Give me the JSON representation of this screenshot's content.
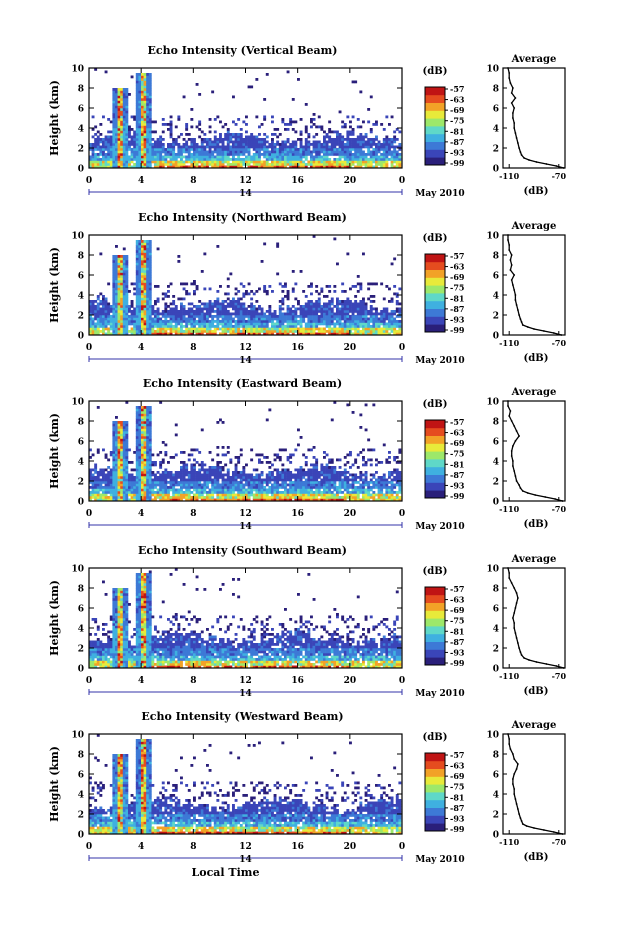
{
  "figure": {
    "xlabel": "Local Time",
    "date_label": "May 2010",
    "colorscale": [
      "#2a1f7a",
      "#3a45b8",
      "#3d79d6",
      "#3fb0e0",
      "#5fd8c8",
      "#9de86a",
      "#e8ea3a",
      "#f2a227",
      "#e54c1f",
      "#c01414"
    ]
  },
  "chart_data": [
    {
      "type": "heatmap",
      "title": "Echo Intensity (Vertical Beam)",
      "ylabel": "Height (km)",
      "ylim": [
        0,
        10
      ],
      "yticks": [
        "0",
        "2",
        "4",
        "6",
        "8",
        "10"
      ],
      "xticks": [
        "0",
        "4",
        "8",
        "12",
        "16",
        "20",
        "0"
      ],
      "day_label": "14",
      "colorbar": {
        "unit": "(dB)",
        "ticks": [
          "-57",
          "-63",
          "-69",
          "-75",
          "-81",
          "-87",
          "-93",
          "-99"
        ]
      },
      "profile": {
        "title": "Average",
        "xlabel": "(dB)",
        "xticks": [
          "-110",
          "-70"
        ],
        "xlim": [
          -115,
          -65
        ],
        "heights": [
          0,
          0.2,
          0.4,
          0.6,
          0.8,
          1.0,
          1.3,
          1.6,
          2.0,
          2.5,
          3.0,
          3.5,
          4.0,
          4.5,
          5.0,
          5.5,
          6.0,
          6.5,
          7.0,
          7.5,
          8.0,
          8.5,
          9.0,
          9.5,
          10.0
        ],
        "values": [
          -66,
          -72,
          -80,
          -88,
          -94,
          -98,
          -100,
          -101,
          -102,
          -103,
          -104,
          -105,
          -106,
          -106,
          -107,
          -107,
          -106,
          -108,
          -105,
          -108,
          -107,
          -109,
          -110,
          -110,
          -111
        ]
      }
    },
    {
      "type": "heatmap",
      "title": "Echo Intensity (Northward Beam)",
      "ylabel": "Height (km)",
      "ylim": [
        0,
        10
      ],
      "yticks": [
        "0",
        "2",
        "4",
        "6",
        "8",
        "10"
      ],
      "xticks": [
        "0",
        "4",
        "8",
        "12",
        "16",
        "20",
        "0"
      ],
      "day_label": "14",
      "colorbar": {
        "unit": "(dB)",
        "ticks": [
          "-57",
          "-63",
          "-69",
          "-75",
          "-81",
          "-87",
          "-93",
          "-99"
        ]
      },
      "profile": {
        "title": "Average",
        "xlabel": "(dB)",
        "xticks": [
          "-110",
          "-70"
        ],
        "xlim": [
          -115,
          -65
        ],
        "heights": [
          0,
          0.2,
          0.4,
          0.6,
          0.8,
          1.0,
          1.3,
          1.6,
          2.0,
          2.5,
          3.0,
          3.5,
          4.0,
          4.5,
          5.0,
          5.5,
          6.0,
          6.5,
          7.0,
          7.5,
          8.0,
          8.5,
          9.0,
          9.5,
          10.0
        ],
        "values": [
          -68,
          -74,
          -82,
          -90,
          -95,
          -99,
          -100,
          -101,
          -102,
          -103,
          -104,
          -105,
          -105,
          -106,
          -107,
          -108,
          -106,
          -109,
          -108,
          -109,
          -108,
          -110,
          -110,
          -111,
          -111
        ]
      }
    },
    {
      "type": "heatmap",
      "title": "Echo Intensity (Eastward Beam)",
      "ylabel": "Height (km)",
      "ylim": [
        0,
        10
      ],
      "yticks": [
        "0",
        "2",
        "4",
        "6",
        "8",
        "10"
      ],
      "xticks": [
        "0",
        "4",
        "8",
        "12",
        "16",
        "20",
        "0"
      ],
      "day_label": "14",
      "colorbar": {
        "unit": "(dB)",
        "ticks": [
          "-57",
          "-63",
          "-69",
          "-75",
          "-81",
          "-87",
          "-93",
          "-99"
        ]
      },
      "profile": {
        "title": "Average",
        "xlabel": "(dB)",
        "xticks": [
          "-110",
          "-70"
        ],
        "xlim": [
          -115,
          -65
        ],
        "heights": [
          0,
          0.2,
          0.4,
          0.6,
          0.8,
          1.0,
          1.3,
          1.6,
          2.0,
          2.5,
          3.0,
          3.5,
          4.0,
          4.5,
          5.0,
          5.5,
          6.0,
          6.5,
          7.0,
          7.5,
          8.0,
          8.5,
          9.0,
          9.5,
          10.0
        ],
        "values": [
          -67,
          -73,
          -81,
          -89,
          -95,
          -99,
          -101,
          -102,
          -104,
          -105,
          -106,
          -107,
          -107,
          -108,
          -108,
          -107,
          -105,
          -102,
          -104,
          -106,
          -108,
          -110,
          -109,
          -111,
          -111
        ]
      }
    },
    {
      "type": "heatmap",
      "title": "Echo Intensity (Southward Beam)",
      "ylabel": "Height (km)",
      "ylim": [
        0,
        10
      ],
      "yticks": [
        "0",
        "2",
        "4",
        "6",
        "8",
        "10"
      ],
      "xticks": [
        "0",
        "4",
        "8",
        "12",
        "16",
        "20",
        "0"
      ],
      "day_label": "14",
      "colorbar": {
        "unit": "(dB)",
        "ticks": [
          "-57",
          "-63",
          "-69",
          "-75",
          "-81",
          "-87",
          "-93",
          "-99"
        ]
      },
      "profile": {
        "title": "Average",
        "xlabel": "(dB)",
        "xticks": [
          "-110",
          "-70"
        ],
        "xlim": [
          -115,
          -65
        ],
        "heights": [
          0,
          0.2,
          0.4,
          0.6,
          0.8,
          1.0,
          1.3,
          1.6,
          2.0,
          2.5,
          3.0,
          3.5,
          4.0,
          4.5,
          5.0,
          5.5,
          6.0,
          6.5,
          7.0,
          7.5,
          8.0,
          8.5,
          9.0,
          9.5,
          10.0
        ],
        "values": [
          -66,
          -72,
          -80,
          -88,
          -94,
          -98,
          -100,
          -101,
          -102,
          -103,
          -104,
          -105,
          -106,
          -106,
          -107,
          -106,
          -105,
          -104,
          -103,
          -104,
          -106,
          -108,
          -110,
          -110,
          -111
        ]
      }
    },
    {
      "type": "heatmap",
      "title": "Echo Intensity (Westward Beam)",
      "ylabel": "Height (km)",
      "ylim": [
        0,
        10
      ],
      "yticks": [
        "0",
        "2",
        "4",
        "6",
        "8",
        "10"
      ],
      "xticks": [
        "0",
        "4",
        "8",
        "12",
        "16",
        "20",
        "0"
      ],
      "day_label": "14",
      "colorbar": {
        "unit": "(dB)",
        "ticks": [
          "-57",
          "-63",
          "-69",
          "-75",
          "-81",
          "-87",
          "-93",
          "-99"
        ]
      },
      "profile": {
        "title": "Average",
        "xlabel": "(dB)",
        "xticks": [
          "-110",
          "-70"
        ],
        "xlim": [
          -115,
          -65
        ],
        "heights": [
          0,
          0.2,
          0.4,
          0.6,
          0.8,
          1.0,
          1.3,
          1.6,
          2.0,
          2.5,
          3.0,
          3.5,
          4.0,
          4.5,
          5.0,
          5.5,
          6.0,
          6.5,
          7.0,
          7.5,
          8.0,
          8.5,
          9.0,
          9.5,
          10.0
        ],
        "values": [
          -67,
          -74,
          -82,
          -90,
          -96,
          -99,
          -100,
          -101,
          -102,
          -103,
          -104,
          -105,
          -106,
          -106,
          -107,
          -107,
          -106,
          -104,
          -103,
          -106,
          -107,
          -109,
          -110,
          -110,
          -111
        ]
      }
    }
  ]
}
